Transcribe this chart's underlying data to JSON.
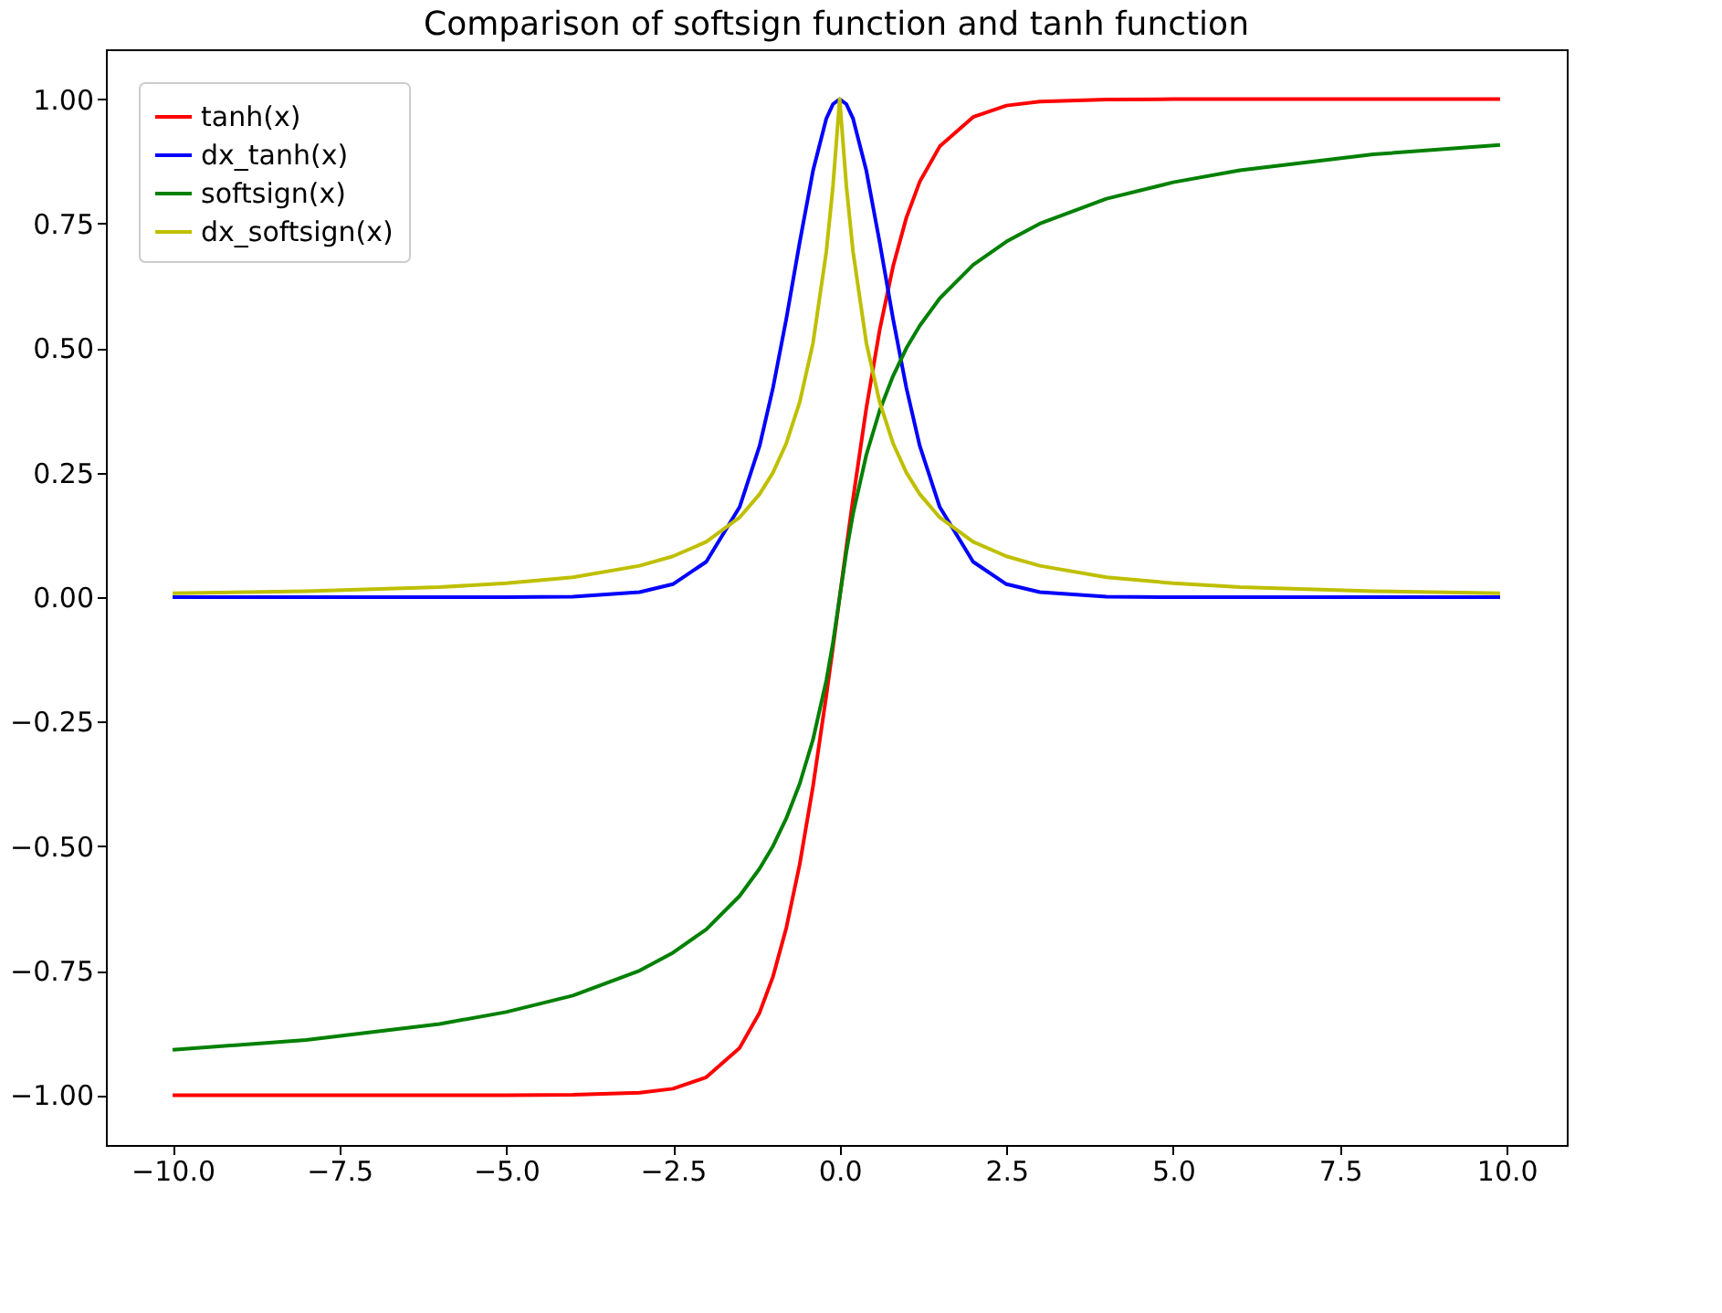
{
  "chart_data": {
    "type": "line",
    "title": "Comparison of softsign function and tanh function",
    "x": [
      -10,
      -8,
      -6,
      -5,
      -4,
      -3,
      -2.5,
      -2,
      -1.5,
      -1.2,
      -1,
      -0.8,
      -0.6,
      -0.4,
      -0.2,
      -0.1,
      0,
      0.1,
      0.2,
      0.4,
      0.6,
      0.8,
      1,
      1.2,
      1.5,
      2,
      2.5,
      3,
      4,
      5,
      6,
      8,
      9.9
    ],
    "series": [
      {
        "name": "tanh(x)",
        "color": "#ff0000",
        "values": [
          -1,
          -1,
          -1,
          -1,
          -0.999,
          -0.995,
          -0.987,
          -0.964,
          -0.905,
          -0.834,
          -0.762,
          -0.664,
          -0.537,
          -0.38,
          -0.197,
          -0.1,
          0,
          0.1,
          0.197,
          0.38,
          0.537,
          0.664,
          0.762,
          0.834,
          0.905,
          0.964,
          0.987,
          0.995,
          0.999,
          1,
          1,
          1,
          1
        ]
      },
      {
        "name": "dx_tanh(x)",
        "color": "#0000ff",
        "values": [
          0,
          0,
          0,
          0,
          0.001,
          0.01,
          0.026,
          0.071,
          0.181,
          0.304,
          0.42,
          0.559,
          0.712,
          0.856,
          0.961,
          0.99,
          1,
          0.99,
          0.961,
          0.856,
          0.712,
          0.559,
          0.42,
          0.304,
          0.181,
          0.071,
          0.026,
          0.01,
          0.001,
          0,
          0,
          0,
          0
        ]
      },
      {
        "name": "softsign(x)",
        "color": "#008000",
        "values": [
          -0.909,
          -0.889,
          -0.857,
          -0.833,
          -0.8,
          -0.75,
          -0.714,
          -0.667,
          -0.6,
          -0.545,
          -0.5,
          -0.444,
          -0.375,
          -0.286,
          -0.167,
          -0.091,
          0,
          0.091,
          0.167,
          0.286,
          0.375,
          0.444,
          0.5,
          0.545,
          0.6,
          0.667,
          0.714,
          0.75,
          0.8,
          0.833,
          0.857,
          0.889,
          0.908
        ]
      },
      {
        "name": "dx_softsign(x)",
        "color": "#bfbf00",
        "values": [
          0.008,
          0.012,
          0.02,
          0.028,
          0.04,
          0.063,
          0.082,
          0.111,
          0.16,
          0.207,
          0.25,
          0.309,
          0.391,
          0.51,
          0.694,
          0.826,
          1,
          0.826,
          0.694,
          0.51,
          0.391,
          0.309,
          0.25,
          0.207,
          0.16,
          0.111,
          0.082,
          0.063,
          0.04,
          0.028,
          0.02,
          0.012,
          0.008
        ]
      }
    ],
    "xlim": [
      -11.0,
      10.9
    ],
    "xticks": [
      {
        "value": -10,
        "label": "−10.0"
      },
      {
        "value": -7.5,
        "label": "−7.5"
      },
      {
        "value": -5,
        "label": "−5.0"
      },
      {
        "value": -2.5,
        "label": "−2.5"
      },
      {
        "value": 0,
        "label": "0.0"
      },
      {
        "value": 2.5,
        "label": "2.5"
      },
      {
        "value": 5,
        "label": "5.0"
      },
      {
        "value": 7.5,
        "label": "7.5"
      },
      {
        "value": 10,
        "label": "10.0"
      }
    ],
    "ylim": [
      -1.1,
      1.1
    ],
    "yticks": [
      {
        "value": -1,
        "label": "−1.00"
      },
      {
        "value": -0.75,
        "label": "−0.75"
      },
      {
        "value": -0.5,
        "label": "−0.50"
      },
      {
        "value": -0.25,
        "label": "−0.25"
      },
      {
        "value": 0,
        "label": "0.00"
      },
      {
        "value": 0.25,
        "label": "0.25"
      },
      {
        "value": 0.5,
        "label": "0.50"
      },
      {
        "value": 0.75,
        "label": "0.75"
      },
      {
        "value": 1,
        "label": "1.00"
      }
    ],
    "grid": false,
    "legend": "top left",
    "line_style": "solid"
  }
}
